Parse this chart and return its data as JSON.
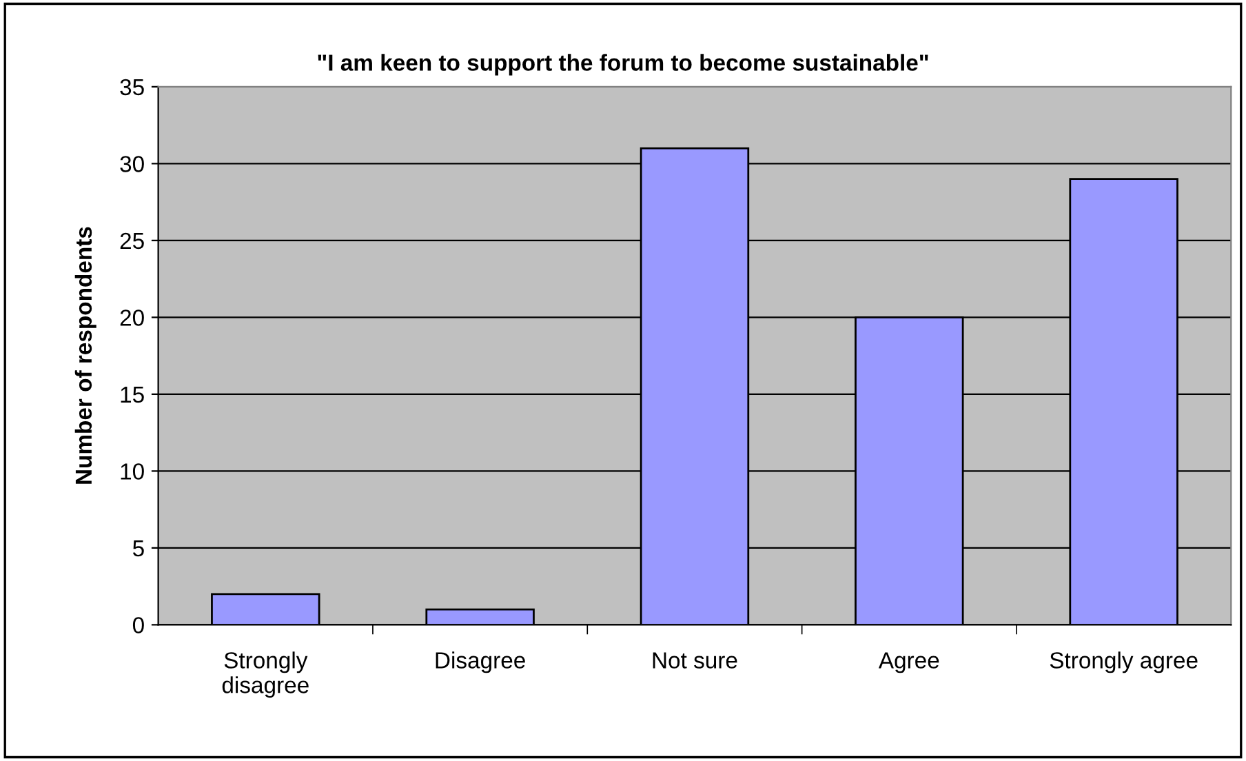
{
  "chart_data": {
    "type": "bar",
    "title": "\"I am keen to support the forum to become sustainable\"",
    "ylabel": "Number of respondents",
    "categories": [
      "Strongly\ndisagree",
      "Disagree",
      "Not sure",
      "Agree",
      "Strongly agree"
    ],
    "values": [
      2,
      1,
      31,
      20,
      29
    ],
    "color": "#9999ff",
    "ylim": [
      0,
      35
    ],
    "yticks": [
      0,
      5,
      10,
      15,
      20,
      25,
      30,
      35
    ],
    "grid": "y"
  }
}
